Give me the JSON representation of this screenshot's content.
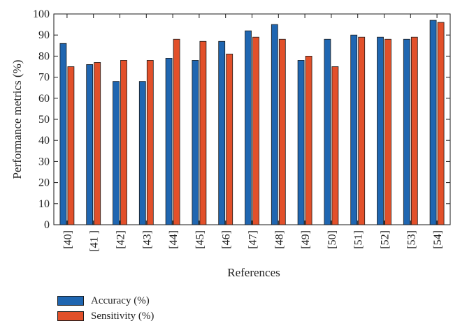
{
  "chart_data": {
    "type": "bar",
    "categories": [
      "[40]",
      "[41 ]",
      "[42]",
      "[43]",
      "[44]",
      "[45]",
      "[46]",
      "[47]",
      "[48]",
      "[49]",
      "[50]",
      "[51]",
      "[52]",
      "[53]",
      "[54]"
    ],
    "series": [
      {
        "name": "Accuracy (%)",
        "color": "#1f66b1",
        "values": [
          86,
          76,
          68,
          68,
          79,
          78,
          87,
          92,
          95,
          78,
          88,
          90,
          89,
          88,
          97
        ]
      },
      {
        "name": "Sensitivity (%)",
        "color": "#e2502a",
        "values": [
          75,
          77,
          78,
          78,
          88,
          87,
          81,
          89,
          88,
          80,
          75,
          89,
          88,
          89,
          96
        ]
      }
    ],
    "title": "",
    "xlabel": "References",
    "ylabel": "Performance metrics (%)",
    "ylim": [
      0,
      100
    ],
    "yticks": [
      0,
      10,
      20,
      30,
      40,
      50,
      60,
      70,
      80,
      90,
      100
    ],
    "grid": false,
    "legend_position": "bottom-left"
  }
}
